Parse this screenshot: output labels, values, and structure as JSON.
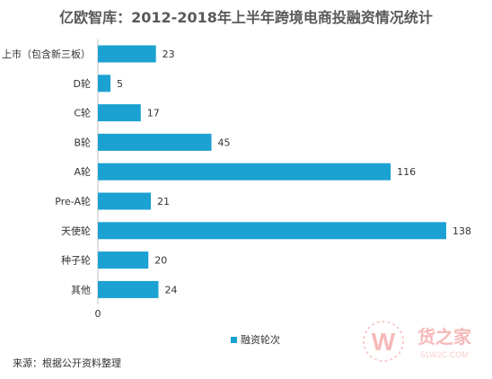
{
  "chart_data": {
    "type": "bar",
    "orientation": "horizontal",
    "title": "亿欧智库：2012-2018年上半年跨境电商投融资情况统计",
    "categories": [
      "上市（包含新三板）",
      "D轮",
      "C轮",
      "B轮",
      "A轮",
      "Pre-A轮",
      "天使轮",
      "种子轮",
      "其他"
    ],
    "series": [
      {
        "name": "融资轮次",
        "values": [
          23,
          5,
          17,
          45,
          116,
          21,
          138,
          20,
          24
        ]
      }
    ],
    "xlim": [
      0,
      140
    ],
    "x_ticks": [
      "0"
    ],
    "grid": false,
    "legend_position": "bottom",
    "bar_color": "#1ba1d2"
  },
  "source_note": "来源：根据公开资料整理",
  "watermark": {
    "brand": "货之家",
    "site": "51W2C.COM",
    "letter": "W"
  }
}
